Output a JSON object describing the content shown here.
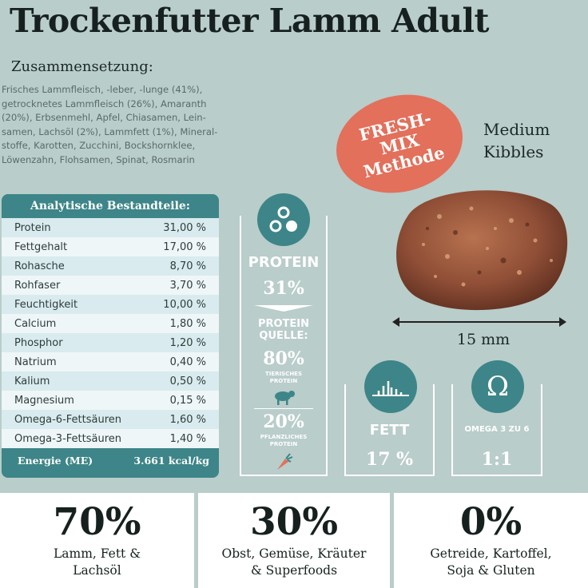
{
  "title": "Trockenfutter Lamm Adult",
  "composition": {
    "heading": "Zusammensetzung:",
    "lines": [
      "Frisches Lammfleisch, -leber, -lunge (41%),",
      "getrocknetes Lammfleisch (26%), Amaranth",
      "(20%), Erbsenmehl, Apfel, Chiasamen, Lein-",
      "samen, Lachsöl (2%), Lammfett (1%), Mineral-",
      "stoffe, Karotten, Zucchini, Bockshornklee,",
      "Löwenzahn, Flohsamen, Spinat, Rosmarin"
    ]
  },
  "analysis": {
    "heading": "Analytische Bestandteile:",
    "rows": [
      {
        "name": "Protein",
        "value": "31,00 %"
      },
      {
        "name": "Fettgehalt",
        "value": "17,00 %"
      },
      {
        "name": "Rohasche",
        "value": "8,70 %"
      },
      {
        "name": "Rohfaser",
        "value": "3,70 %"
      },
      {
        "name": "Feuchtigkeit",
        "value": "10,00 %"
      },
      {
        "name": "Calcium",
        "value": "1,80 %"
      },
      {
        "name": "Phosphor",
        "value": "1,20 %"
      },
      {
        "name": "Natrium",
        "value": "0,40 %"
      },
      {
        "name": "Kalium",
        "value": "0,50 %"
      },
      {
        "name": "Magnesium",
        "value": "0,15 %"
      },
      {
        "name": "Omega-6-Fettsäuren",
        "value": "1,60 %"
      },
      {
        "name": "Omega-3-Fettsäuren",
        "value": "1,40 %"
      }
    ],
    "energy_label": "Energie (ME)",
    "energy_value": "3.661 kcal/kg"
  },
  "protein": {
    "label": "PROTEIN",
    "value": "31%",
    "source_label_1": "PROTEIN",
    "source_label_2": "QUELLE:",
    "animal_value": "80%",
    "animal_label_1": "TIERISCHES",
    "animal_label_2": "PROTEIN",
    "plant_value": "20%",
    "plant_label_1": "PFLANZLICHES",
    "plant_label_2": "PROTEIN"
  },
  "fett": {
    "label": "FETT",
    "value": "17 %"
  },
  "omega": {
    "label": "OMEGA 3 ZU 6",
    "value": "1:1",
    "symbol": "Ω"
  },
  "badge": {
    "line1": "FRESH-",
    "line2": "MIX",
    "line3": "Methode"
  },
  "kibbles": {
    "line1": "Medium",
    "line2": "Kibbles",
    "size": "15 mm"
  },
  "bottom": [
    {
      "big": "70%",
      "line1": "Lamm, Fett &",
      "line2": "Lachsöl"
    },
    {
      "big": "30%",
      "line1": "Obst, Gemüse, Kräuter",
      "line2": "& Superfoods"
    },
    {
      "big": "0%",
      "line1": "Getreide, Kartoffel,",
      "line2": "Soja & Gluten"
    }
  ],
  "colors": {
    "accent": "#3d8588",
    "badge": "#e2705b",
    "background": "#b9cdca"
  }
}
